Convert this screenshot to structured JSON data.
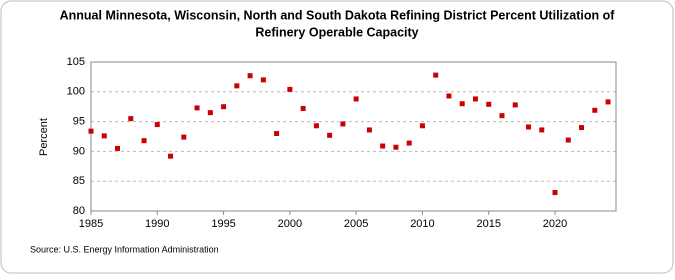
{
  "chart_data": {
    "type": "scatter",
    "title": [
      "Annual Minnesota, Wisconsin, North and South Dakota Refining District Percent Utilization of",
      "Refinery Operable Capacity"
    ],
    "y_label": "Percent",
    "source": "Source: U.S. Energy Information Administration",
    "x": [
      1985,
      1986,
      1987,
      1988,
      1989,
      1990,
      1991,
      1992,
      1993,
      1994,
      1995,
      1996,
      1997,
      1998,
      1999,
      2000,
      2001,
      2002,
      2003,
      2004,
      2005,
      2006,
      2007,
      2008,
      2009,
      2010,
      2011,
      2012,
      2013,
      2014,
      2015,
      2016,
      2017,
      2018,
      2019,
      2020,
      2021,
      2022,
      2023,
      2024
    ],
    "series": [
      {
        "name": "Percent Utilization",
        "color": "#cc0000",
        "values": [
          93.4,
          92.6,
          90.5,
          95.5,
          91.8,
          94.5,
          89.2,
          92.4,
          97.3,
          96.5,
          97.5,
          101,
          102.7,
          102,
          93,
          100.4,
          97.2,
          94.3,
          92.7,
          94.6,
          98.8,
          93.6,
          90.9,
          90.7,
          91.4,
          94.3,
          102.8,
          99.3,
          98,
          98.8,
          97.9,
          96,
          97.8,
          94.1,
          93.6,
          83.1,
          91.9,
          94,
          96.9,
          98.3
        ]
      }
    ],
    "xlim": [
      1985,
      2024.6
    ],
    "xticks": [
      1985,
      1990,
      1995,
      2000,
      2005,
      2010,
      2015,
      2020
    ],
    "ylim": [
      80,
      105
    ],
    "yticks": [
      80,
      85,
      90,
      95,
      100,
      105
    ],
    "grid": true
  }
}
